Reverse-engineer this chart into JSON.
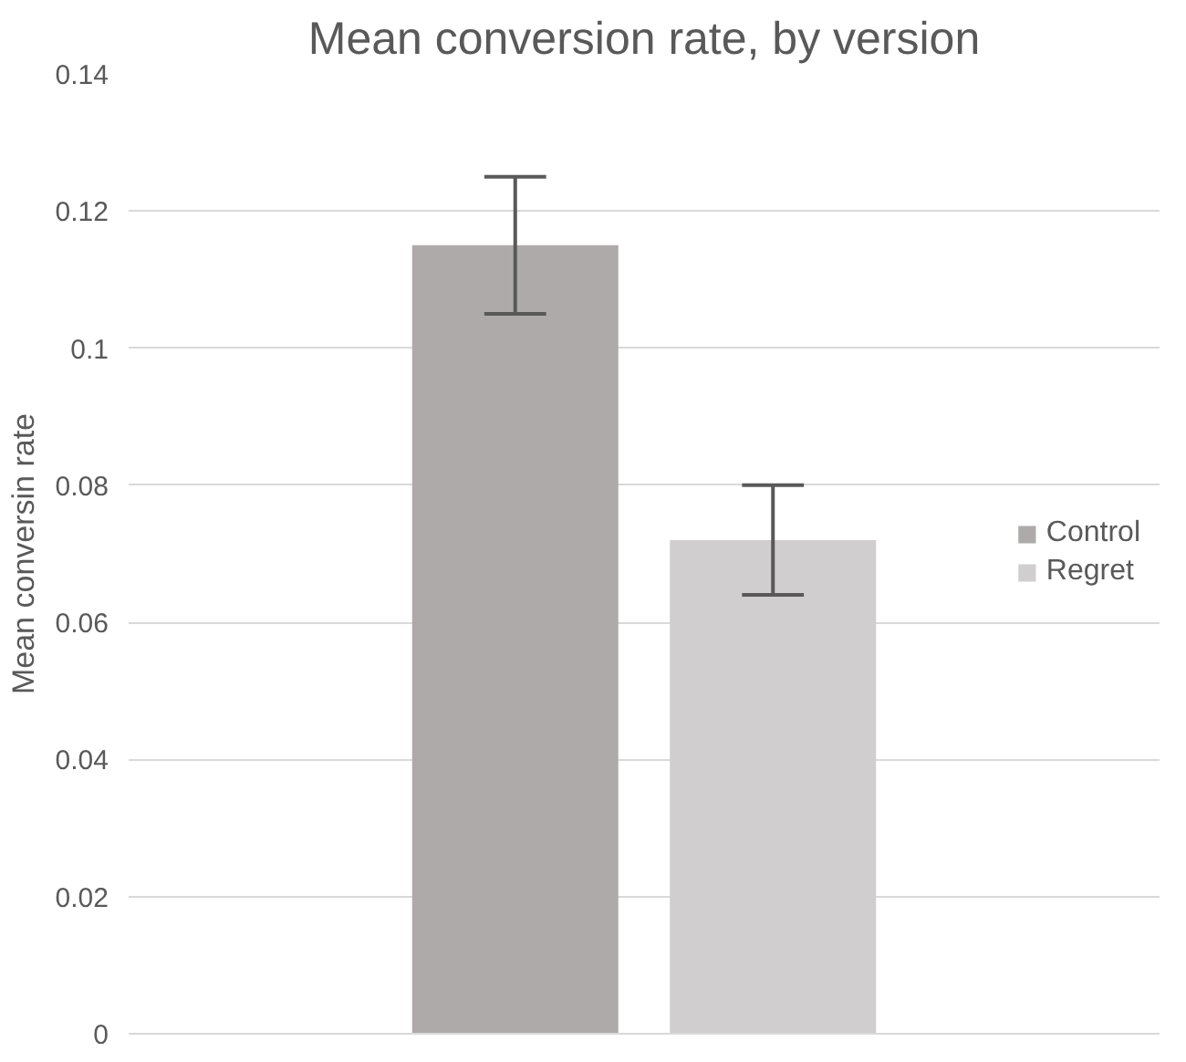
{
  "chart_data": {
    "type": "bar",
    "title": "Mean conversion rate, by version",
    "ylabel": "Mean conversin rate",
    "categories": [
      null
    ],
    "series": [
      {
        "name": "Control",
        "color": "#aeaaaa",
        "values": [
          0.115
        ],
        "errors": [
          0.01
        ]
      },
      {
        "name": "Regret",
        "color": "#d0cece",
        "values": [
          0.072
        ],
        "errors": [
          0.008
        ]
      }
    ],
    "ylim": [
      0,
      0.14
    ],
    "yticks": [
      0,
      0.02,
      0.04,
      0.06,
      0.08,
      0.1,
      0.12,
      0.14
    ],
    "grid": "y",
    "legend": "right"
  }
}
